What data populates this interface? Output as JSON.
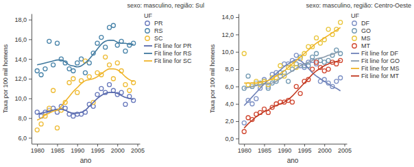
{
  "chart_data": [
    {
      "type": "scatter",
      "title": "sexo: masculino, região: Sul",
      "x_label": "ano",
      "y_label": "Taxa por 100 mil homens",
      "legend_title": "UF",
      "legend": "right",
      "x": [
        1980,
        1981,
        1982,
        1983,
        1984,
        1985,
        1986,
        1987,
        1988,
        1989,
        1990,
        1991,
        1992,
        1993,
        1994,
        1995,
        1996,
        1997,
        1998,
        1999,
        2000,
        2001,
        2002,
        2003,
        2004
      ],
      "xlim": [
        1978.6,
        2005.6
      ],
      "xticks": [
        1980,
        1985,
        1990,
        1995,
        2000,
        2005
      ],
      "ylim": [
        5.4,
        18.6
      ],
      "yticks": [
        {
          "value": 6,
          "label": "6,0"
        },
        {
          "value": 8,
          "label": "8,0"
        },
        {
          "value": 10,
          "label": "10,0"
        },
        {
          "value": 12,
          "label": "12,0"
        },
        {
          "value": 14,
          "label": "14,0"
        },
        {
          "value": 16,
          "label": "16,0"
        },
        {
          "value": 18,
          "label": "18,0"
        }
      ],
      "series": [
        {
          "name": "PR",
          "type": "scatter",
          "marker": "circle",
          "color": "#6677bb",
          "values": [
            8.6,
            8.2,
            8.6,
            8.8,
            9.0,
            8.6,
            9.2,
            9.0,
            8.4,
            8.2,
            8.4,
            8.4,
            8.6,
            9.4,
            9.2,
            10.4,
            11.0,
            10.6,
            11.4,
            10.8,
            10.4,
            10.6,
            9.4,
            10.2,
            9.8
          ]
        },
        {
          "name": "RS",
          "type": "scatter",
          "marker": "circle",
          "color": "#4682a8",
          "values": [
            12.8,
            12.4,
            13.0,
            15.8,
            13.4,
            15.6,
            14.0,
            13.6,
            13.0,
            12.8,
            13.6,
            14.0,
            12.6,
            13.6,
            14.6,
            15.6,
            16.2,
            15.2,
            17.2,
            17.4,
            15.4,
            15.8,
            14.8,
            15.4,
            15.6
          ]
        },
        {
          "name": "SC",
          "type": "scatter",
          "marker": "circle",
          "color": "#eebb33",
          "values": [
            6.8,
            7.4,
            8.2,
            9.0,
            10.8,
            7.0,
            8.8,
            9.6,
            11.6,
            12.0,
            10.6,
            11.8,
            13.8,
            12.2,
            9.6,
            12.6,
            12.4,
            14.2,
            13.4,
            12.0,
            13.6,
            12.8,
            11.4,
            10.8,
            11.6
          ]
        },
        {
          "name": "Fit line for PR",
          "type": "line",
          "line_style": "solid",
          "color": "#5566aa",
          "values": [
            8.4,
            8.5,
            8.6,
            8.7,
            8.8,
            8.9,
            8.9,
            8.8,
            8.6,
            8.5,
            8.5,
            8.6,
            8.8,
            9.2,
            9.6,
            10.0,
            10.3,
            10.5,
            10.6,
            10.6,
            10.5,
            10.3,
            10.1,
            10.0,
            9.9
          ]
        },
        {
          "name": "Fit line for RS",
          "type": "line",
          "line_style": "solid",
          "color": "#3f789e",
          "values": [
            13.4,
            13.5,
            13.6,
            13.7,
            13.8,
            13.9,
            13.9,
            13.7,
            13.4,
            13.3,
            13.2,
            13.3,
            13.6,
            14.0,
            14.5,
            15.0,
            15.5,
            15.8,
            15.9,
            15.9,
            15.7,
            15.6,
            15.6,
            15.5,
            15.5
          ]
        },
        {
          "name": "Fit line for SC",
          "type": "line",
          "line_style": "solid",
          "color": "#f0b429",
          "values": [
            7.8,
            8.0,
            8.3,
            8.5,
            8.7,
            8.8,
            9.2,
            9.7,
            10.2,
            10.7,
            11.1,
            11.5,
            11.8,
            11.9,
            12.0,
            12.2,
            12.5,
            12.8,
            13.0,
            13.0,
            12.9,
            12.6,
            12.2,
            11.9,
            11.7
          ]
        }
      ]
    },
    {
      "type": "scatter",
      "title": "sexo: masculino, região: Centro-Oeste",
      "x_label": "ano",
      "y_label": "Taxa por 100 mil homens",
      "legend_title": "UF",
      "legend": "right",
      "x": [
        1980,
        1981,
        1982,
        1983,
        1984,
        1985,
        1986,
        1987,
        1988,
        1989,
        1990,
        1991,
        1992,
        1993,
        1994,
        1995,
        1996,
        1997,
        1998,
        1999,
        2000,
        2001,
        2002,
        2003,
        2004
      ],
      "xlim": [
        1978.6,
        2005.6
      ],
      "xticks": [
        1980,
        1985,
        1990,
        1995,
        2000,
        2005
      ],
      "ylim": [
        -0.6,
        14.4
      ],
      "yticks": [
        {
          "value": 0,
          "label": "0,0"
        },
        {
          "value": 2,
          "label": "2,0"
        },
        {
          "value": 4,
          "label": "4,0"
        },
        {
          "value": 6,
          "label": "6,0"
        },
        {
          "value": 8,
          "label": "8,0"
        },
        {
          "value": 10,
          "label": "10,0"
        },
        {
          "value": 12,
          "label": "12,0"
        },
        {
          "value": 14,
          "label": "14,0"
        }
      ],
      "series": [
        {
          "name": "DF",
          "type": "scatter",
          "marker": "circle",
          "color": "#7b8fc4",
          "values": [
            1.8,
            4.4,
            4.0,
            4.6,
            5.8,
            6.8,
            6.0,
            7.4,
            7.6,
            7.2,
            8.6,
            8.6,
            9.0,
            9.6,
            8.4,
            8.2,
            8.8,
            9.0,
            8.6,
            6.6,
            6.8,
            6.4,
            6.0,
            6.6,
            7.0
          ]
        },
        {
          "name": "GO",
          "type": "scatter",
          "marker": "circle",
          "color": "#6f97b0",
          "values": [
            5.8,
            7.2,
            6.0,
            6.4,
            6.4,
            6.6,
            5.8,
            6.4,
            6.6,
            7.6,
            7.6,
            6.6,
            8.0,
            8.6,
            9.4,
            8.4,
            8.4,
            9.4,
            9.8,
            9.0,
            8.8,
            9.0,
            9.6,
            10.2,
            9.8
          ]
        },
        {
          "name": "MS",
          "type": "scatter",
          "marker": "circle",
          "color": "#e9c53a",
          "values": [
            9.8,
            6.2,
            6.2,
            6.6,
            6.2,
            6.6,
            6.2,
            7.0,
            7.0,
            8.4,
            7.2,
            8.2,
            8.6,
            8.2,
            9.2,
            9.8,
            10.6,
            10.6,
            11.6,
            11.0,
            11.4,
            12.6,
            12.0,
            12.6,
            13.4
          ]
        },
        {
          "name": "MT",
          "type": "scatter",
          "marker": "circle",
          "color": "#d0462f",
          "values": [
            0.8,
            2.4,
            2.2,
            2.8,
            3.0,
            3.4,
            3.0,
            3.6,
            4.0,
            4.2,
            4.2,
            4.4,
            4.2,
            6.0,
            5.2,
            6.6,
            6.8,
            8.0,
            8.8,
            8.2,
            7.8,
            8.0,
            8.8,
            8.6,
            9.0
          ]
        },
        {
          "name": "Fit line for DF",
          "type": "line",
          "line_style": "solid",
          "color": "#6f82b8",
          "values": [
            3.8,
            4.3,
            4.8,
            5.3,
            5.8,
            6.3,
            6.7,
            7.1,
            7.5,
            7.9,
            8.3,
            8.6,
            8.9,
            9.1,
            9.0,
            8.6,
            8.1,
            7.6,
            7.2,
            6.9,
            6.6,
            6.3,
            6.0,
            5.8,
            5.5
          ]
        },
        {
          "name": "Fit line for GO",
          "type": "line",
          "line_style": "solid",
          "color": "#8a9aab",
          "values": [
            5.8,
            5.9,
            6.0,
            6.1,
            6.2,
            6.3,
            6.3,
            6.4,
            6.6,
            6.9,
            7.2,
            7.5,
            7.8,
            8.1,
            8.4,
            8.6,
            8.8,
            9.0,
            9.2,
            9.3,
            9.4,
            9.6,
            9.7,
            9.9,
            10.0
          ]
        },
        {
          "name": "Fit line for MS",
          "type": "line",
          "line_style": "solid",
          "color": "#f0b429",
          "values": [
            6.4,
            6.4,
            6.4,
            6.4,
            6.5,
            6.6,
            6.7,
            6.9,
            7.2,
            7.5,
            7.8,
            8.2,
            8.6,
            9.0,
            9.4,
            9.8,
            10.2,
            10.6,
            11.0,
            11.3,
            11.6,
            11.9,
            12.2,
            12.5,
            12.8
          ]
        },
        {
          "name": "Fit line for MT",
          "type": "line",
          "line_style": "solid",
          "color": "#c23a22",
          "values": [
            1.2,
            1.7,
            2.1,
            2.5,
            2.8,
            3.1,
            3.3,
            3.6,
            3.8,
            4.0,
            4.2,
            4.5,
            4.9,
            5.4,
            5.9,
            6.4,
            6.9,
            7.4,
            7.8,
            8.1,
            8.4,
            8.6,
            8.8,
            8.9,
            9.0
          ]
        }
      ]
    }
  ]
}
